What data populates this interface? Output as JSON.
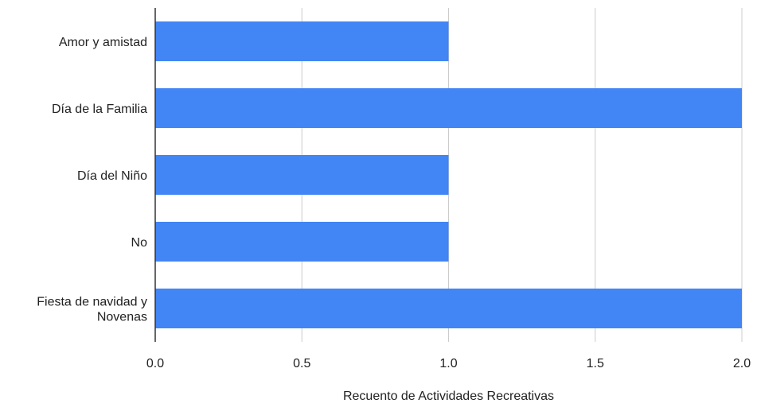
{
  "chart_data": {
    "type": "bar",
    "orientation": "horizontal",
    "categories": [
      "Amor y amistad",
      "Día de la Familia",
      "Día del Niño",
      "No",
      "Fiesta de navidad y Novenas"
    ],
    "category_label_lines": [
      [
        "Amor y amistad"
      ],
      [
        "Día de la Familia"
      ],
      [
        "Día del Niño"
      ],
      [
        "No"
      ],
      [
        "Fiesta de navidad y",
        "Novenas"
      ]
    ],
    "series": [
      {
        "values": [
          1,
          2,
          1,
          1,
          2
        ],
        "color": "#4285f4"
      }
    ],
    "xlabel": "Recuento de Actividades Recreativas",
    "ylabel": "",
    "xlim": [
      0,
      2
    ],
    "xticks": [
      "0.0",
      "0.5",
      "1.0",
      "1.5",
      "2.0"
    ],
    "grid": true,
    "legend": "none"
  }
}
